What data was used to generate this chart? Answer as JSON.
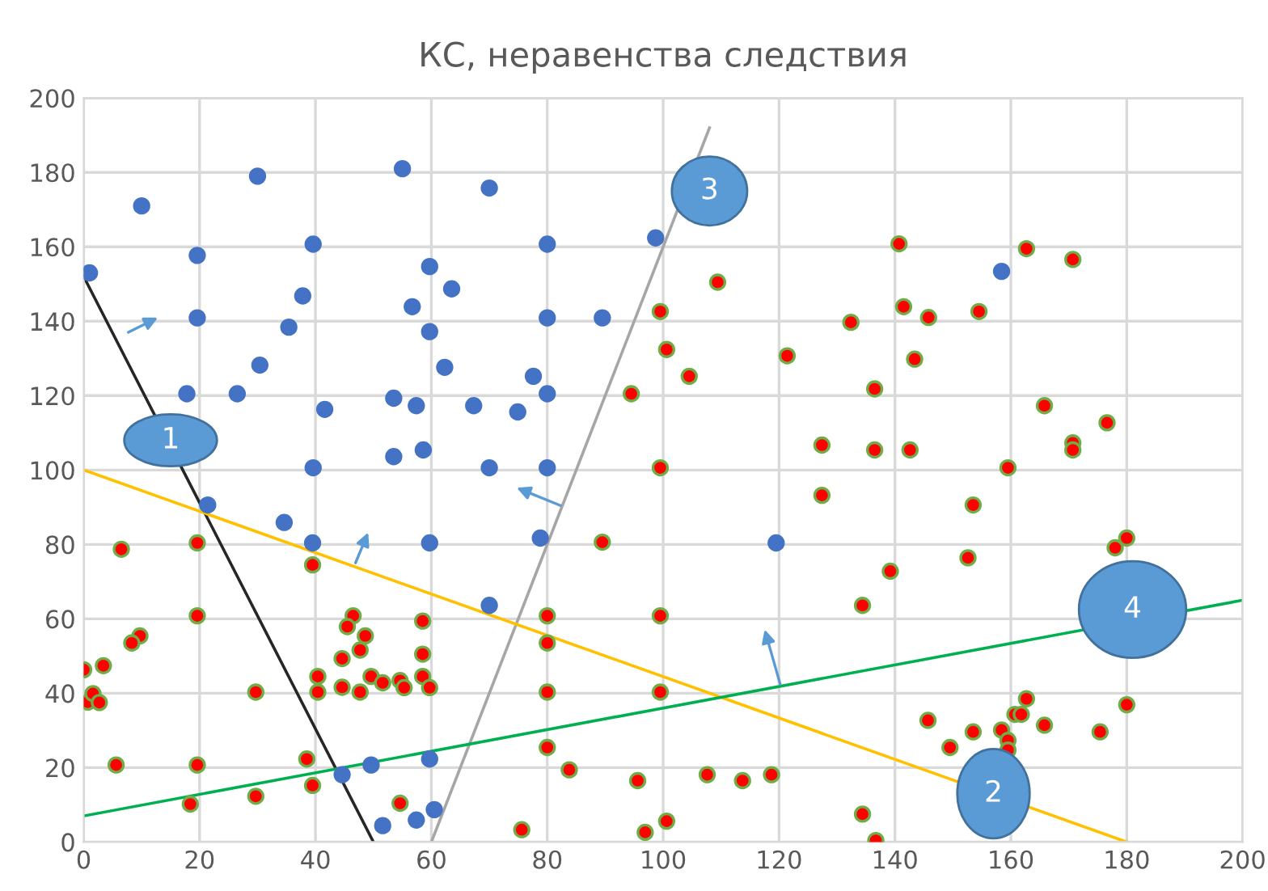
{
  "chart_data": {
    "type": "scatter",
    "title": "КС, неравенства следствия",
    "xlim": [
      0,
      200
    ],
    "ylim": [
      0,
      200
    ],
    "xticks": [
      0,
      20,
      40,
      60,
      80,
      100,
      120,
      140,
      160,
      180,
      200
    ],
    "yticks": [
      0,
      20,
      40,
      60,
      80,
      100,
      120,
      140,
      160,
      180,
      200
    ],
    "grid": true,
    "legend": false,
    "series": [
      {
        "marker": "circle",
        "color": "#4472c4",
        "x": [
          10,
          30,
          55,
          1,
          19.6,
          39.6,
          59.7,
          63.5,
          37.8,
          56.7,
          19.6,
          35.4,
          59.7,
          30.4,
          62.3,
          17.8,
          26.5,
          53.5,
          57.4,
          67.3,
          41.6,
          53.5,
          58.6,
          39.6,
          70,
          80,
          98.7,
          80,
          89.5,
          77.6,
          80,
          74.9,
          70,
          80,
          21.4,
          34.6,
          39.5,
          59.7,
          78.8,
          70,
          119.5,
          158.4,
          44.6,
          49.6,
          59.7,
          51.6,
          57.4,
          60.5
        ],
        "values": [
          171,
          179,
          181,
          153,
          157.7,
          160.7,
          154.7,
          148.7,
          146.8,
          143.9,
          140.9,
          138.4,
          137.2,
          128.2,
          127.6,
          120.5,
          120.5,
          119.3,
          117.3,
          117.3,
          116.3,
          103.6,
          105.4,
          100.6,
          175.8,
          160.7,
          162.4,
          140.9,
          140.9,
          125.2,
          120.5,
          115.6,
          100.6,
          100.6,
          90.6,
          85.9,
          80.4,
          80.4,
          81.7,
          63.6,
          80.4,
          153.4,
          18.1,
          20.7,
          22.3,
          4.4,
          5.9,
          8.7
        ]
      },
      {
        "marker": "circle",
        "color": "#ff0000",
        "x": [
          109.4,
          99.5,
          132.4,
          100.6,
          121.4,
          104.5,
          94.5,
          127.4,
          99.5,
          127.4,
          140.7,
          162.7,
          170.7,
          141.5,
          145.8,
          154.5,
          143.4,
          136.5,
          165.8,
          176.6,
          136.5,
          142.6,
          170.7,
          170.7,
          159.5,
          6.5,
          19.6,
          39.5,
          19.6,
          46.5,
          45.5,
          48.6,
          58.5,
          47.7,
          44.6,
          58.5,
          9.7,
          8.3,
          0,
          3.4,
          40.4,
          49.6,
          51.6,
          54.6,
          55.3,
          58.5,
          59.7,
          40.4,
          44.6,
          47.7,
          29.7,
          0.7,
          1.6,
          2.7,
          5.6,
          19.6,
          38.5,
          39.5,
          18.4,
          29.7,
          54.6,
          89.5,
          134.4,
          80,
          99.5,
          80,
          80,
          99.5,
          80,
          83.8,
          95.6,
          107.6,
          113.7,
          118.7,
          134.4,
          75.6,
          96.9,
          100.6,
          153.5,
          139.2,
          152.6,
          178,
          180,
          180,
          145.7,
          153.5,
          149.5,
          158.4,
          159.5,
          159.5,
          160.7,
          161.8,
          162.7,
          165.8,
          175.4,
          136.7
        ],
        "values": [
          150.5,
          142.6,
          139.7,
          132.4,
          130.7,
          125.2,
          120.5,
          106.7,
          100.6,
          93.2,
          160.8,
          159.5,
          156.6,
          143.9,
          141,
          142.6,
          129.8,
          121.8,
          117.3,
          112.7,
          105.4,
          105.4,
          107.3,
          105.4,
          100.6,
          78.7,
          80.4,
          74.5,
          60.8,
          60.8,
          57.9,
          55.4,
          59.4,
          51.6,
          49.3,
          50.5,
          55.4,
          53.5,
          46.3,
          47.4,
          44.5,
          44.5,
          42.8,
          43.4,
          41.5,
          44.5,
          41.5,
          40.3,
          41.6,
          40.3,
          40.3,
          37.6,
          39.9,
          37.5,
          20.7,
          20.7,
          22.3,
          15.2,
          10.2,
          12.3,
          10.4,
          80.6,
          63.6,
          60.8,
          60.8,
          53.5,
          40.3,
          40.3,
          25.4,
          19.4,
          16.5,
          18.1,
          16.5,
          18.1,
          7.5,
          3.3,
          2.6,
          5.6,
          90.6,
          72.8,
          76.4,
          79.1,
          81.7,
          36.9,
          32.7,
          29.6,
          25.4,
          30.1,
          27.3,
          24.7,
          34.3,
          34.3,
          38.5,
          31.4,
          29.6,
          0.4
        ]
      },
      {
        "type": "line",
        "marker": "none",
        "line_style": "solid",
        "color": "#262626",
        "x": [
          0,
          50
        ],
        "values": [
          152,
          0
        ]
      },
      {
        "type": "line",
        "marker": "none",
        "line_style": "solid",
        "color": "#a6a6a6",
        "x": [
          60,
          108
        ],
        "values": [
          0,
          192
        ]
      },
      {
        "type": "line",
        "marker": "none",
        "line_style": "solid",
        "color": "#ffc000",
        "x": [
          0,
          180
        ],
        "values": [
          100,
          0
        ]
      },
      {
        "type": "line",
        "marker": "none",
        "line_style": "solid",
        "color": "#00b050",
        "x": [
          0,
          200
        ],
        "values": [
          7,
          65
        ]
      }
    ],
    "annotations": [
      {
        "text": "1",
        "x": 15,
        "y": 108
      },
      {
        "text": "2",
        "x": 157,
        "y": 13
      },
      {
        "text": "3",
        "x": 104,
        "y": 176
      },
      {
        "text": "4",
        "x": 181,
        "y": 59.5
      }
    ]
  }
}
